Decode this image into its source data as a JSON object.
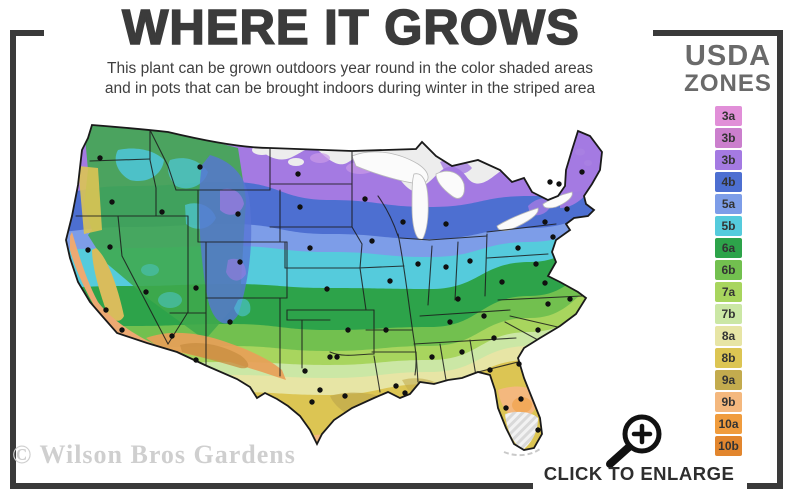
{
  "header": {
    "title": "WHERE IT GROWS",
    "subtitle_line1": "This plant can be grown outdoors year round in the color shaded areas",
    "subtitle_line2": "and in pots that can be brought indoors during winter in the striped area"
  },
  "legend": {
    "title_line1": "USDA",
    "title_line2": "ZONES",
    "zones": [
      {
        "label": "3a",
        "color": "#e18fd8"
      },
      {
        "label": "3b",
        "color": "#cb7fcd"
      },
      {
        "label": "3b",
        "color": "#a47ae2"
      },
      {
        "label": "4b",
        "color": "#4d6fd1"
      },
      {
        "label": "5a",
        "color": "#7d9de8"
      },
      {
        "label": "5b",
        "color": "#55cbdc"
      },
      {
        "label": "6a",
        "color": "#2da34a"
      },
      {
        "label": "6b",
        "color": "#72c04f"
      },
      {
        "label": "7a",
        "color": "#a8d55e"
      },
      {
        "label": "7b",
        "color": "#cbe7a5"
      },
      {
        "label": "8a",
        "color": "#e7e5a5"
      },
      {
        "label": "8b",
        "color": "#dcc553"
      },
      {
        "label": "9a",
        "color": "#c3ab4e"
      },
      {
        "label": "9b",
        "color": "#f4b87e"
      },
      {
        "label": "10a",
        "color": "#f09c3d"
      },
      {
        "label": "10b",
        "color": "#e2862e"
      }
    ]
  },
  "map": {
    "dot_color": "#101010",
    "city_dots": [
      [
        100,
        158
      ],
      [
        112,
        202
      ],
      [
        162,
        212
      ],
      [
        200,
        167
      ],
      [
        238,
        214
      ],
      [
        196,
        288
      ],
      [
        240,
        262
      ],
      [
        230,
        322
      ],
      [
        172,
        336
      ],
      [
        196,
        360
      ],
      [
        146,
        292
      ],
      [
        110,
        247
      ],
      [
        88,
        250
      ],
      [
        106,
        310
      ],
      [
        122,
        330
      ],
      [
        298,
        174
      ],
      [
        300,
        207
      ],
      [
        310,
        248
      ],
      [
        327,
        289
      ],
      [
        348,
        330
      ],
      [
        365,
        199
      ],
      [
        372,
        241
      ],
      [
        390,
        281
      ],
      [
        386,
        330
      ],
      [
        403,
        222
      ],
      [
        418,
        264
      ],
      [
        446,
        267
      ],
      [
        470,
        261
      ],
      [
        446,
        224
      ],
      [
        458,
        299
      ],
      [
        450,
        322
      ],
      [
        484,
        316
      ],
      [
        432,
        357
      ],
      [
        462,
        352
      ],
      [
        494,
        338
      ],
      [
        396,
        386
      ],
      [
        405,
        393
      ],
      [
        330,
        357
      ],
      [
        337,
        357
      ],
      [
        305,
        371
      ],
      [
        320,
        390
      ],
      [
        312,
        402
      ],
      [
        345,
        396
      ],
      [
        538,
        330
      ],
      [
        548,
        304
      ],
      [
        570,
        299
      ],
      [
        545,
        283
      ],
      [
        502,
        282
      ],
      [
        518,
        248
      ],
      [
        545,
        222
      ],
      [
        553,
        237
      ],
      [
        536,
        264
      ],
      [
        550,
        182
      ],
      [
        559,
        184
      ],
      [
        582,
        172
      ],
      [
        567,
        209
      ],
      [
        490,
        370
      ],
      [
        519,
        364
      ],
      [
        506,
        408
      ],
      [
        521,
        399
      ],
      [
        538,
        430
      ]
    ]
  },
  "enlarge": {
    "label": "CLICK TO ENLARGE"
  },
  "watermark": "© Wilson Bros Gardens"
}
